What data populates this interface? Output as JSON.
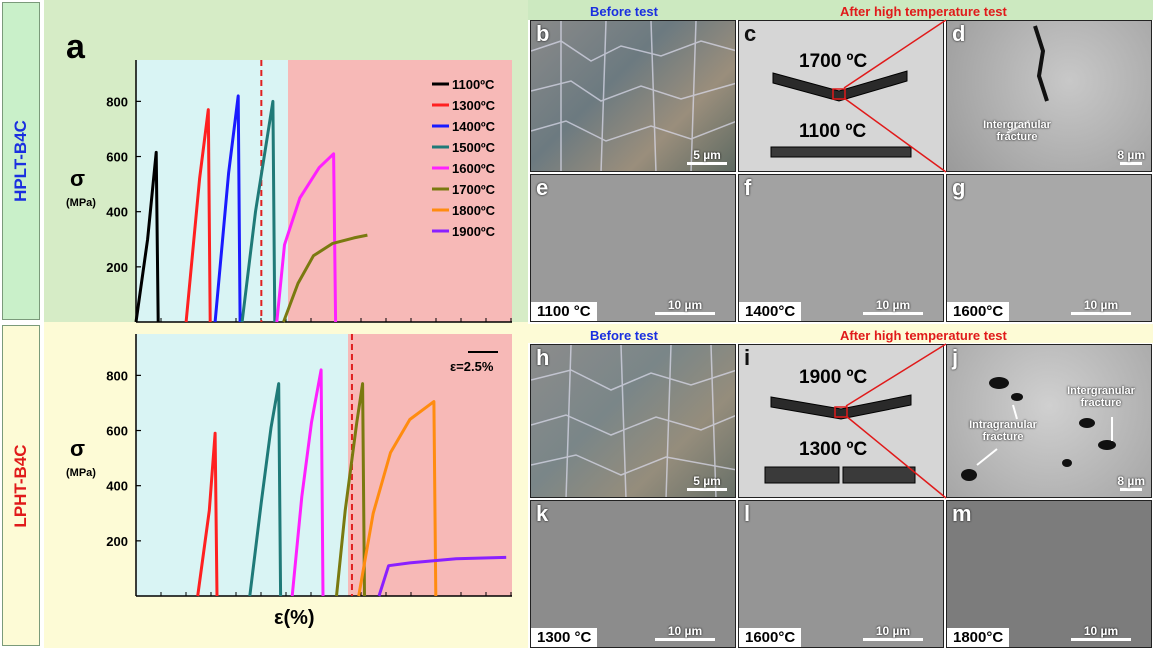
{
  "colors": {
    "s1100": "#000000",
    "s1300": "#ff2020",
    "s1400": "#1a1aff",
    "s1500": "#1f7a78",
    "s1600": "#ff20ff",
    "s1700": "#7a7a10",
    "s1800": "#ff8c10",
    "s1900": "#8a20ff",
    "dashed": "#e02020",
    "blue_text": "#1a2fe0",
    "red_text": "#e01a1a"
  },
  "row_labels": {
    "top": "HPLT-B4C",
    "bottom": "LPHT-B4C"
  },
  "panel_a": {
    "letter": "a",
    "ylabel": "σ",
    "yunit": "(MPa)",
    "xlabel": "ε(%)",
    "scale_label": "ε=2.5%"
  },
  "chart_data": [
    {
      "type": "line",
      "name": "HPLT-B4C",
      "ylim": [
        0,
        950
      ],
      "yticks": [
        200,
        400,
        600,
        800
      ],
      "legend_position": "top-right",
      "legend": [
        "1100ºC",
        "1300ºC",
        "1400ºC",
        "1500ºC",
        "1600ºC",
        "1700ºC",
        "1800ºC",
        "1900ºC"
      ],
      "series": [
        {
          "name": "1100ºC",
          "color": "#000000",
          "points": [
            [
              0,
              0
            ],
            [
              0.6,
              300
            ],
            [
              1.05,
              615
            ],
            [
              1.15,
              0
            ]
          ]
        },
        {
          "name": "1300ºC",
          "color": "#ff2020",
          "points": [
            [
              2.6,
              0
            ],
            [
              3.3,
              520
            ],
            [
              3.75,
              770
            ],
            [
              3.85,
              0
            ]
          ]
        },
        {
          "name": "1400ºC",
          "color": "#1a1aff",
          "points": [
            [
              4.1,
              0
            ],
            [
              4.8,
              540
            ],
            [
              5.3,
              820
            ],
            [
              5.4,
              0
            ]
          ]
        },
        {
          "name": "1500ºC",
          "color": "#1f7a78",
          "points": [
            [
              5.5,
              0
            ],
            [
              6.2,
              400
            ],
            [
              7.1,
              800
            ],
            [
              7.2,
              0
            ]
          ]
        },
        {
          "name": "1600ºC",
          "color": "#ff20ff",
          "points": [
            [
              7.3,
              0
            ],
            [
              7.7,
              280
            ],
            [
              8.5,
              450
            ],
            [
              9.5,
              560
            ],
            [
              10.25,
              610
            ],
            [
              10.35,
              0
            ]
          ]
        },
        {
          "name": "1700ºC",
          "color": "#7a7a10",
          "points": [
            [
              7.65,
              0
            ],
            [
              8.4,
              140
            ],
            [
              9.2,
              240
            ],
            [
              10.2,
              285
            ],
            [
              11.3,
              305
            ],
            [
              12,
              315
            ]
          ]
        }
      ],
      "dashed_x": 6.5
    },
    {
      "type": "line",
      "name": "LPHT-B4C",
      "ylim": [
        0,
        950
      ],
      "yticks": [
        200,
        400,
        600,
        800
      ],
      "series": [
        {
          "name": "1300ºC",
          "color": "#ff2020",
          "points": [
            [
              3.2,
              0
            ],
            [
              3.8,
              310
            ],
            [
              4.1,
              590
            ],
            [
              4.2,
              0
            ]
          ]
        },
        {
          "name": "1500ºC",
          "color": "#1f7a78",
          "points": [
            [
              5.9,
              0
            ],
            [
              6.5,
              340
            ],
            [
              7.0,
              610
            ],
            [
              7.4,
              770
            ],
            [
              7.5,
              0
            ]
          ]
        },
        {
          "name": "1600ºC",
          "color": "#ff20ff",
          "points": [
            [
              8.1,
              0
            ],
            [
              8.6,
              360
            ],
            [
              9.1,
              630
            ],
            [
              9.6,
              820
            ],
            [
              9.7,
              0
            ]
          ]
        },
        {
          "name": "1700ºC",
          "color": "#7a7a10",
          "points": [
            [
              10.4,
              0
            ],
            [
              10.85,
              310
            ],
            [
              11.45,
              630
            ],
            [
              11.75,
              770
            ],
            [
              11.85,
              0
            ]
          ]
        },
        {
          "name": "1800ºC",
          "color": "#ff8c10",
          "points": [
            [
              11.55,
              0
            ],
            [
              12.3,
              300
            ],
            [
              13.2,
              520
            ],
            [
              14.2,
              640
            ],
            [
              15.45,
              705
            ],
            [
              15.55,
              0
            ]
          ]
        },
        {
          "name": "1900ºC",
          "color": "#8a20ff",
          "points": [
            [
              12.6,
              0
            ],
            [
              13.1,
              110
            ],
            [
              14.2,
              120
            ],
            [
              16.6,
              135
            ],
            [
              19.2,
              140
            ]
          ]
        }
      ],
      "dashed_x": 11.2
    }
  ],
  "headers": {
    "before": "Before test",
    "after": "After high temperature test"
  },
  "panels": {
    "b": {
      "letter": "b",
      "scale": "5 µm"
    },
    "c": {
      "letter": "c",
      "temp_top": "1700 ºC",
      "temp_bottom": "1100 ºC"
    },
    "d": {
      "letter": "d",
      "note": "Intergranular fracture",
      "scale": "8 µm"
    },
    "e": {
      "letter": "e",
      "temp": "1100 °C",
      "scale": "10 µm"
    },
    "f": {
      "letter": "f",
      "temp": "1400°C",
      "scale": "10 µm"
    },
    "g": {
      "letter": "g",
      "temp": "1600°C",
      "scale": "10 µm"
    },
    "h": {
      "letter": "h",
      "scale": "5 µm"
    },
    "i": {
      "letter": "i",
      "temp_top": "1900 ºC",
      "temp_bottom": "1300 ºC"
    },
    "j": {
      "letter": "j",
      "note1": "Intergranular fracture",
      "note2": "Intragranular fracture",
      "scale": "8 µm"
    },
    "k": {
      "letter": "k",
      "temp": "1300 °C",
      "scale": "10 µm"
    },
    "l": {
      "letter": "l",
      "temp": "1600°C",
      "scale": "10 µm"
    },
    "m": {
      "letter": "m",
      "temp": "1800°C",
      "scale": "10 µm"
    }
  }
}
